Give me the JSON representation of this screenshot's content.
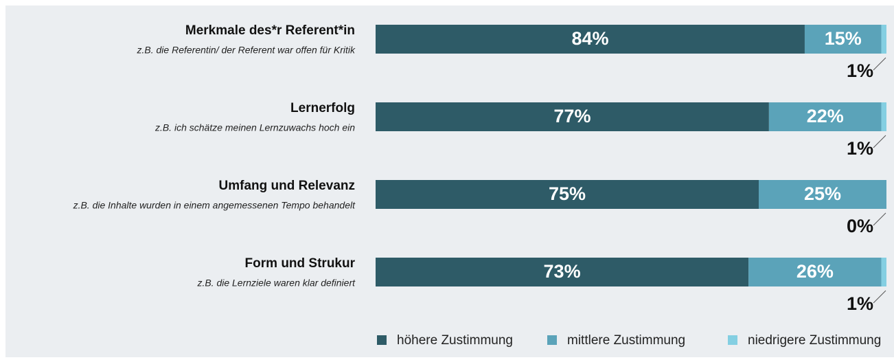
{
  "chart_data": {
    "type": "stacked_barh",
    "categories": [
      "Merkmale des*r Referent*in",
      "Lernerfolg",
      "Umfang und Relevanz",
      "Form und Strukur"
    ],
    "descriptions": [
      "z.B. die Referentin/ der Referent war offen für Kritik",
      "z.B. ich schätze meinen Lernzuwachs hoch ein",
      "z.B. die Inhalte wurden in einem angemessenen Tempo behandelt",
      "z.B. die Lernziele waren klar definiert"
    ],
    "series": [
      {
        "name": "höhere Zustimmung",
        "color": "#2e5b67",
        "values": [
          84,
          77,
          75,
          73
        ],
        "value_labels": [
          "84%",
          "77%",
          "75%",
          "73%"
        ]
      },
      {
        "name": "mittlere Zustimmung",
        "color": "#5ba3b9",
        "values": [
          15,
          22,
          25,
          26
        ],
        "value_labels": [
          "15%",
          "22%",
          "25%",
          "26%"
        ]
      },
      {
        "name": "niedrigere Zustimmung",
        "color": "#84cfe2",
        "values": [
          1,
          1,
          0,
          1
        ],
        "value_labels": [
          "1%",
          "1%",
          "0%",
          "1%"
        ]
      }
    ],
    "xlim": [
      0,
      100
    ]
  }
}
